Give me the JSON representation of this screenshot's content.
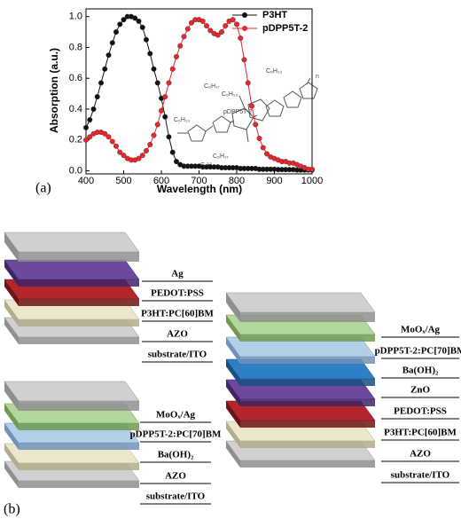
{
  "chart_data": {
    "type": "line",
    "xlabel": "Wavelength (nm)",
    "ylabel": "Absorption (a.u.)",
    "x": [
      400,
      410,
      420,
      430,
      440,
      450,
      460,
      470,
      480,
      490,
      500,
      510,
      520,
      530,
      540,
      550,
      560,
      570,
      580,
      590,
      600,
      610,
      620,
      630,
      640,
      650,
      660,
      670,
      680,
      690,
      700,
      710,
      720,
      730,
      740,
      750,
      760,
      770,
      780,
      790,
      800,
      810,
      820,
      830,
      840,
      850,
      860,
      870,
      880,
      890,
      900,
      910,
      920,
      930,
      940,
      950,
      960,
      970,
      980,
      990,
      1000
    ],
    "series": [
      {
        "name": "P3HT",
        "color": "#111111",
        "values": [
          0.28,
          0.33,
          0.4,
          0.48,
          0.57,
          0.66,
          0.75,
          0.83,
          0.9,
          0.95,
          0.98,
          1.0,
          1.0,
          0.99,
          0.97,
          0.93,
          0.85,
          0.76,
          0.66,
          0.57,
          0.47,
          0.35,
          0.22,
          0.12,
          0.06,
          0.04,
          0.03,
          0.03,
          0.03,
          0.03,
          0.03,
          0.025,
          0.025,
          0.025,
          0.025,
          0.025,
          0.02,
          0.02,
          0.02,
          0.02,
          0.02,
          0.015,
          0.015,
          0.015,
          0.015,
          0.015,
          0.01,
          0.01,
          0.01,
          0.01,
          0.01,
          0.008,
          0.008,
          0.008,
          0.008,
          0.008,
          0.005,
          0.005,
          0.005,
          0.005,
          0.005
        ]
      },
      {
        "name": "pDPP5T-2",
        "color": "#e8262b",
        "values": [
          0.2,
          0.22,
          0.24,
          0.25,
          0.25,
          0.24,
          0.22,
          0.19,
          0.16,
          0.12,
          0.1,
          0.08,
          0.07,
          0.07,
          0.08,
          0.1,
          0.13,
          0.17,
          0.23,
          0.3,
          0.39,
          0.48,
          0.57,
          0.66,
          0.74,
          0.81,
          0.87,
          0.92,
          0.96,
          0.98,
          0.98,
          0.97,
          0.94,
          0.91,
          0.89,
          0.88,
          0.9,
          0.94,
          0.97,
          0.98,
          0.95,
          0.86,
          0.72,
          0.57,
          0.42,
          0.3,
          0.21,
          0.15,
          0.11,
          0.09,
          0.08,
          0.07,
          0.06,
          0.06,
          0.05,
          0.05,
          0.04,
          0.03,
          0.02,
          0.01,
          0.01
        ]
      }
    ],
    "xlim": [
      400,
      1000
    ],
    "xticks": [
      400,
      500,
      600,
      700,
      800,
      900,
      1000
    ],
    "ylim": [
      -0.02,
      1.05
    ],
    "yticks": [
      {
        "value": 0,
        "label": "0.0"
      },
      {
        "value": 0.2,
        "label": "0.2"
      },
      {
        "value": 0.4,
        "label": "0.4"
      },
      {
        "value": 0.6,
        "label": "0.6"
      },
      {
        "value": 0.8,
        "label": "0.8"
      },
      {
        "value": 1.0,
        "label": "1.0"
      }
    ],
    "legend": "upper right",
    "annotations": [
      "C₈H₁₇",
      "C₆H₁₃",
      "C₆H₁₃",
      "C₈H₁₇",
      "C₆H₁₃",
      "C₆H₁₃",
      "pDPP5T-2",
      "n"
    ]
  },
  "panel_labels": [
    "(a)",
    "(b)"
  ],
  "stacks": [
    {
      "layers": [
        "Ag",
        "PEDOT:PSS",
        "P3HT:PC[60]BM",
        "AZO",
        "substrate/ITO"
      ]
    },
    {
      "layers": [
        "MoOₓ/Ag",
        "pDPP5T-2:PC[70]BM",
        "Ba(OH)₂",
        "AZO",
        "substrate/ITO"
      ]
    },
    {
      "layers": [
        "MoOₓ/Ag",
        "pDPP5T-2:PC[70]BM",
        "Ba(OH)₂",
        "ZnO",
        "PEDOT:PSS",
        "P3HT:PC[60]BM",
        "AZO",
        "substrate/ITO"
      ]
    }
  ]
}
